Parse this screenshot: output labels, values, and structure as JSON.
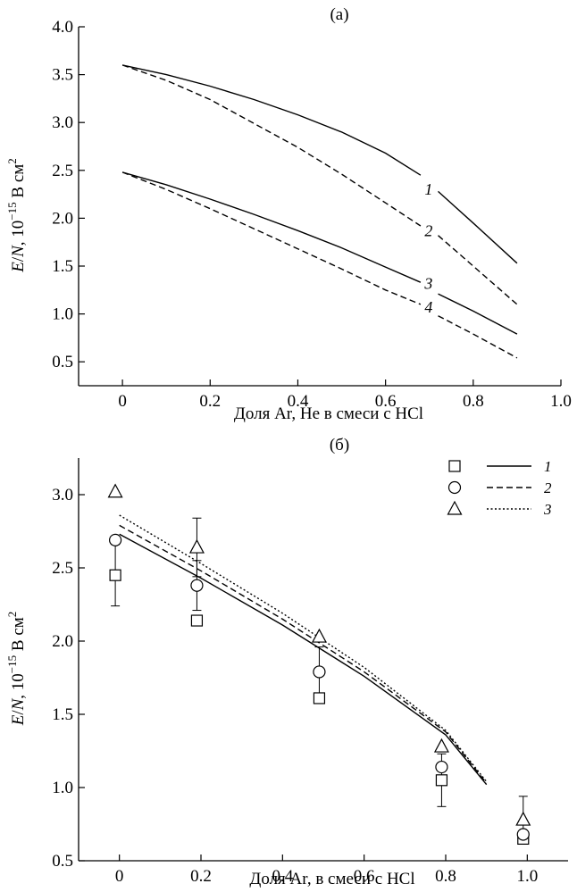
{
  "chart_data": [
    {
      "panel": "(a)",
      "type": "line",
      "title": "(a)",
      "xlabel": "Доля Ar, He в смеси с HCl",
      "ylabel_prefix": "E",
      "ylabel_mid": "/",
      "ylabel_var": "N",
      "ylabel_rest": ", 10",
      "ylabel_exp": "−15",
      "ylabel_unit": " В см",
      "ylabel_unit_exp": "2",
      "xlim": [
        -0.1,
        1.0
      ],
      "ylim": [
        0.25,
        4.0
      ],
      "xticks": [
        0,
        0.2,
        0.4,
        0.6,
        0.8,
        1.0
      ],
      "xtick_labels": [
        "0",
        "0.2",
        "0.4",
        "0.6",
        "0.8",
        "1.0"
      ],
      "yticks": [
        0.5,
        1.0,
        1.5,
        2.0,
        2.5,
        3.0,
        3.5,
        4.0
      ],
      "ytick_labels": [
        "0.5",
        "1.0",
        "1.5",
        "2.0",
        "2.5",
        "3.0",
        "3.5",
        "4.0"
      ],
      "grid": false,
      "series": [
        {
          "label": "1",
          "style": "solid",
          "label_x": 0.69,
          "label_y": 2.3,
          "x": [
            0,
            0.1,
            0.2,
            0.3,
            0.4,
            0.5,
            0.6,
            0.68,
            0.72,
            0.8,
            0.9
          ],
          "y": [
            3.6,
            3.5,
            3.38,
            3.24,
            3.08,
            2.9,
            2.68,
            2.45,
            2.28,
            1.95,
            1.53
          ]
        },
        {
          "label": "2",
          "style": "dashed",
          "label_x": 0.69,
          "label_y": 1.87,
          "x": [
            0,
            0.1,
            0.2,
            0.3,
            0.4,
            0.5,
            0.6,
            0.68,
            0.72,
            0.8,
            0.9
          ],
          "y": [
            3.6,
            3.44,
            3.24,
            2.99,
            2.74,
            2.46,
            2.16,
            1.92,
            1.82,
            1.5,
            1.1
          ]
        },
        {
          "label": "3",
          "style": "solid",
          "label_x": 0.69,
          "label_y": 1.32,
          "x": [
            0,
            0.1,
            0.2,
            0.3,
            0.4,
            0.5,
            0.6,
            0.68,
            0.72,
            0.8,
            0.9
          ],
          "y": [
            2.48,
            2.35,
            2.2,
            2.04,
            1.87,
            1.69,
            1.49,
            1.33,
            1.21,
            1.03,
            0.79
          ]
        },
        {
          "label": "4",
          "style": "dashed",
          "label_x": 0.69,
          "label_y": 1.07,
          "x": [
            0,
            0.1,
            0.2,
            0.3,
            0.4,
            0.5,
            0.6,
            0.68,
            0.72,
            0.8,
            0.9
          ],
          "y": [
            2.48,
            2.3,
            2.1,
            1.89,
            1.68,
            1.47,
            1.25,
            1.1,
            0.98,
            0.79,
            0.54
          ]
        }
      ]
    },
    {
      "panel": "(б)",
      "type": "line+scatter",
      "title": "(б)",
      "xlabel": "Доля Ar, в смеси с HCl",
      "ylabel_prefix": "E",
      "ylabel_mid": "/",
      "ylabel_var": "N",
      "ylabel_rest": ", 10",
      "ylabel_exp": "−15",
      "ylabel_unit": " В см",
      "ylabel_unit_exp": "2",
      "xlim": [
        -0.1,
        1.1
      ],
      "ylim": [
        0.5,
        3.25
      ],
      "xticks": [
        0,
        0.2,
        0.4,
        0.6,
        0.8,
        1.0
      ],
      "xtick_labels": [
        "0",
        "0.2",
        "0.4",
        "0.6",
        "0.8",
        "1.0"
      ],
      "yticks": [
        0.5,
        1.0,
        1.5,
        2.0,
        2.5,
        3.0
      ],
      "ytick_labels": [
        "0.5",
        "1.0",
        "1.5",
        "2.0",
        "2.5",
        "3.0"
      ],
      "grid": false,
      "legend_position": "top-right",
      "lines": [
        {
          "label": "1",
          "style": "solid",
          "x": [
            0,
            0.2,
            0.4,
            0.6,
            0.8,
            0.9
          ],
          "y": [
            2.73,
            2.43,
            2.11,
            1.76,
            1.36,
            1.02
          ]
        },
        {
          "label": "2",
          "style": "dashed",
          "x": [
            0,
            0.2,
            0.4,
            0.6,
            0.8,
            0.9
          ],
          "y": [
            2.79,
            2.48,
            2.15,
            1.79,
            1.38,
            1.03
          ]
        },
        {
          "label": "3",
          "style": "dotted",
          "x": [
            0,
            0.2,
            0.4,
            0.6,
            0.8,
            0.9
          ],
          "y": [
            2.86,
            2.53,
            2.19,
            1.82,
            1.39,
            1.04
          ]
        }
      ],
      "points": [
        {
          "marker": "square",
          "label": "1",
          "x": [
            -0.01,
            0.19,
            0.49,
            0.79,
            0.99
          ],
          "y": [
            2.45,
            2.14,
            1.61,
            1.05,
            0.65
          ],
          "err": [
            0.21,
            null,
            null,
            0.18,
            null
          ]
        },
        {
          "marker": "circle",
          "label": "2",
          "x": [
            -0.01,
            0.19,
            0.49,
            0.79,
            0.99
          ],
          "y": [
            2.69,
            2.38,
            1.79,
            1.14,
            0.68
          ],
          "err": [
            null,
            0.17,
            0.17,
            null,
            null
          ]
        },
        {
          "marker": "triangle",
          "label": "3",
          "x": [
            -0.01,
            0.19,
            0.49,
            0.79,
            0.99
          ],
          "y": [
            3.02,
            2.64,
            2.03,
            1.28,
            0.78
          ],
          "err": [
            null,
            0.2,
            null,
            null,
            0.16
          ]
        }
      ],
      "legend": [
        {
          "marker": "square",
          "style": "solid",
          "label": "1"
        },
        {
          "marker": "circle",
          "style": "dashed",
          "label": "2"
        },
        {
          "marker": "triangle",
          "style": "dotted",
          "label": "3"
        }
      ]
    }
  ]
}
